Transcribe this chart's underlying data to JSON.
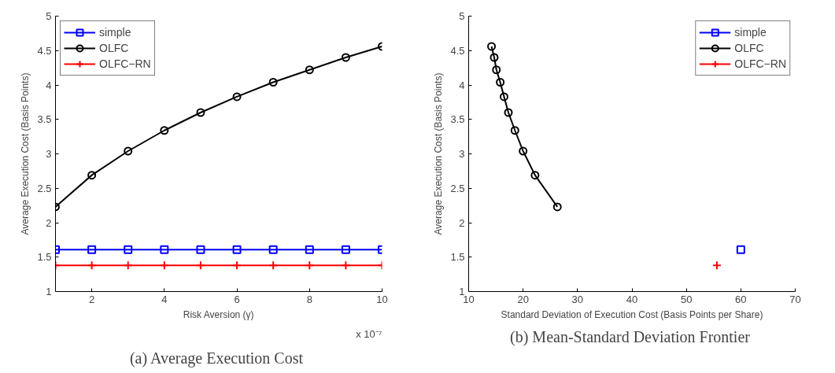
{
  "chart_data": [
    {
      "type": "line",
      "title": "(a)  Average Execution Cost",
      "xlabel": "Risk Aversion (γ)",
      "ylabel": "Average Execution Cost (Basis Points)",
      "annotations": [
        "x 10⁻⁷"
      ],
      "x": [
        1,
        2,
        3,
        4,
        5,
        6,
        7,
        8,
        9,
        10
      ],
      "series": [
        {
          "name": "simple",
          "color": "#0000ff",
          "marker": "square",
          "values": [
            1.61,
            1.61,
            1.61,
            1.61,
            1.61,
            1.61,
            1.61,
            1.61,
            1.61,
            1.61
          ]
        },
        {
          "name": "OLFC",
          "color": "#000000",
          "marker": "circle",
          "values": [
            2.23,
            2.69,
            3.04,
            3.34,
            3.6,
            3.83,
            4.04,
            4.22,
            4.4,
            4.56
          ]
        },
        {
          "name": "OLFC−RN",
          "color": "#ff0000",
          "marker": "cross",
          "values": [
            1.38,
            1.38,
            1.38,
            1.38,
            1.38,
            1.38,
            1.38,
            1.38,
            1.38,
            1.38
          ]
        }
      ],
      "xlim": [
        1,
        10
      ],
      "xticks": [
        2,
        4,
        6,
        8,
        10
      ],
      "ylim": [
        1,
        5
      ],
      "yticks": [
        1,
        1.5,
        2,
        2.5,
        3,
        3.5,
        4,
        4.5,
        5
      ],
      "grid": false,
      "legend": "top left",
      "line_style": "solid"
    },
    {
      "type": "line",
      "title": "(b)  Mean-Standard Deviation Frontier",
      "xlabel": "Standard Deviation of Execution Cost (Basis Points per Share)",
      "ylabel": "Average Execution Cost (Basis Points)",
      "series": [
        {
          "name": "simple",
          "color": "#0000ff",
          "marker": "square",
          "x": [
            60
          ],
          "values": [
            1.61
          ]
        },
        {
          "name": "OLFC",
          "color": "#000000",
          "marker": "circle",
          "x": [
            26.3,
            22.2,
            20.0,
            18.5,
            17.3,
            16.5,
            15.8,
            15.1,
            14.7,
            14.2
          ],
          "values": [
            2.23,
            2.69,
            3.04,
            3.34,
            3.6,
            3.83,
            4.04,
            4.22,
            4.4,
            4.56
          ]
        },
        {
          "name": "OLFC−RN",
          "color": "#ff0000",
          "marker": "cross",
          "x": [
            55.6
          ],
          "values": [
            1.38
          ]
        }
      ],
      "xlim": [
        10,
        70
      ],
      "xticks": [
        10,
        20,
        30,
        40,
        50,
        60,
        70
      ],
      "ylim": [
        1,
        5
      ],
      "yticks": [
        1,
        1.5,
        2,
        2.5,
        3,
        3.5,
        4,
        4.5,
        5
      ],
      "grid": false,
      "legend": "top right",
      "line_style": "solid"
    }
  ]
}
